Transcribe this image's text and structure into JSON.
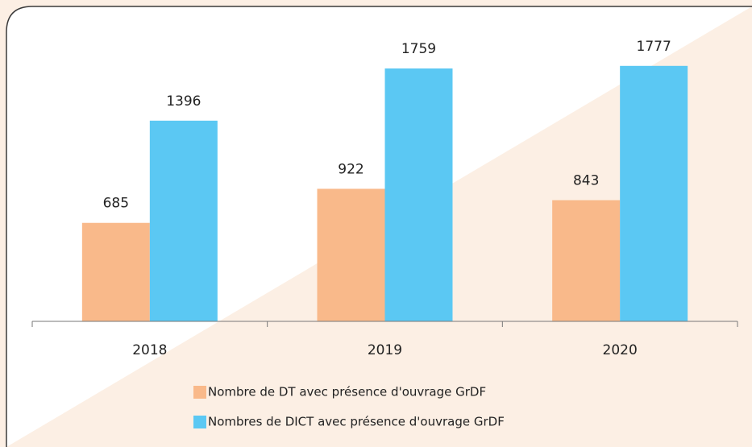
{
  "chart_data": {
    "type": "bar",
    "categories": [
      "2018",
      "2019",
      "2020"
    ],
    "series": [
      {
        "name": "Nombre de DT avec présence d'ouvrage GrDF",
        "color": "#f9b98a",
        "values": [
          685,
          922,
          843
        ]
      },
      {
        "name": "Nombres de DICT avec présence d'ouvrage GrDF",
        "color": "#5bc8f3",
        "values": [
          1396,
          1759,
          1777
        ]
      }
    ],
    "ylim": [
      0,
      2000
    ],
    "grid": false,
    "legend": "bottom"
  }
}
